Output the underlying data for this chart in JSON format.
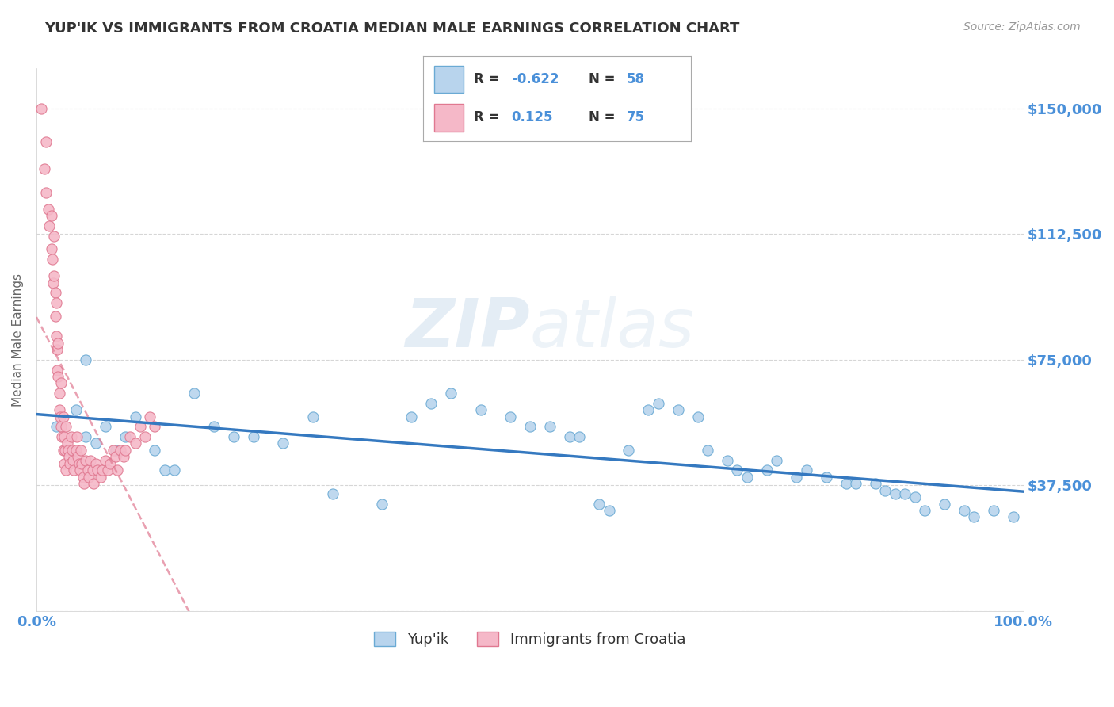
{
  "title": "YUP'IK VS IMMIGRANTS FROM CROATIA MEDIAN MALE EARNINGS CORRELATION CHART",
  "source": "Source: ZipAtlas.com",
  "ylabel": "Median Male Earnings",
  "xlim": [
    0,
    1.0
  ],
  "ylim": [
    0,
    162000
  ],
  "yticks": [
    0,
    37500,
    75000,
    112500,
    150000
  ],
  "ytick_labels": [
    "",
    "$37,500",
    "$75,000",
    "$112,500",
    "$150,000"
  ],
  "xtick_labels": [
    "0.0%",
    "100.0%"
  ],
  "background_color": "#ffffff",
  "grid_color": "#cccccc",
  "series1_name": "Yup'ik",
  "series1_color": "#b8d4ed",
  "series1_edge_color": "#6aaad4",
  "series1_line_color": "#3579c0",
  "series1_R": "-0.622",
  "series1_N": "58",
  "series2_name": "Immigrants from Croatia",
  "series2_color": "#f5b8c8",
  "series2_edge_color": "#e07890",
  "series2_line_color": "#e07890",
  "series2_R": "0.125",
  "series2_N": "75",
  "title_color": "#333333",
  "axis_label_color": "#4a90d9",
  "series1_x": [
    0.02,
    0.04,
    0.05,
    0.05,
    0.06,
    0.07,
    0.08,
    0.09,
    0.1,
    0.12,
    0.13,
    0.14,
    0.16,
    0.18,
    0.2,
    0.22,
    0.25,
    0.28,
    0.3,
    0.35,
    0.38,
    0.4,
    0.42,
    0.45,
    0.48,
    0.5,
    0.52,
    0.54,
    0.55,
    0.57,
    0.58,
    0.6,
    0.62,
    0.63,
    0.65,
    0.67,
    0.68,
    0.7,
    0.71,
    0.72,
    0.74,
    0.75,
    0.77,
    0.78,
    0.8,
    0.82,
    0.83,
    0.85,
    0.86,
    0.87,
    0.88,
    0.89,
    0.9,
    0.92,
    0.94,
    0.95,
    0.97,
    0.99
  ],
  "series1_y": [
    55000,
    60000,
    52000,
    75000,
    50000,
    55000,
    48000,
    52000,
    58000,
    48000,
    42000,
    42000,
    65000,
    55000,
    52000,
    52000,
    50000,
    58000,
    35000,
    32000,
    58000,
    62000,
    65000,
    60000,
    58000,
    55000,
    55000,
    52000,
    52000,
    32000,
    30000,
    48000,
    60000,
    62000,
    60000,
    58000,
    48000,
    45000,
    42000,
    40000,
    42000,
    45000,
    40000,
    42000,
    40000,
    38000,
    38000,
    38000,
    36000,
    35000,
    35000,
    34000,
    30000,
    32000,
    30000,
    28000,
    30000,
    28000
  ],
  "series2_x": [
    0.005,
    0.008,
    0.01,
    0.01,
    0.012,
    0.013,
    0.015,
    0.015,
    0.016,
    0.017,
    0.018,
    0.018,
    0.019,
    0.019,
    0.02,
    0.02,
    0.021,
    0.021,
    0.022,
    0.022,
    0.023,
    0.023,
    0.024,
    0.025,
    0.025,
    0.026,
    0.027,
    0.027,
    0.028,
    0.028,
    0.029,
    0.03,
    0.03,
    0.031,
    0.032,
    0.033,
    0.034,
    0.035,
    0.036,
    0.037,
    0.038,
    0.04,
    0.041,
    0.042,
    0.043,
    0.044,
    0.045,
    0.046,
    0.047,
    0.048,
    0.05,
    0.052,
    0.053,
    0.055,
    0.057,
    0.058,
    0.06,
    0.062,
    0.065,
    0.067,
    0.07,
    0.072,
    0.075,
    0.078,
    0.08,
    0.082,
    0.085,
    0.088,
    0.09,
    0.095,
    0.1,
    0.105,
    0.11,
    0.115,
    0.12
  ],
  "series2_y": [
    150000,
    132000,
    140000,
    125000,
    120000,
    115000,
    118000,
    108000,
    105000,
    98000,
    112000,
    100000,
    95000,
    88000,
    92000,
    82000,
    78000,
    72000,
    80000,
    70000,
    65000,
    60000,
    58000,
    68000,
    55000,
    52000,
    58000,
    48000,
    52000,
    44000,
    48000,
    55000,
    42000,
    50000,
    48000,
    46000,
    44000,
    52000,
    48000,
    45000,
    42000,
    48000,
    52000,
    46000,
    44000,
    42000,
    48000,
    44000,
    40000,
    38000,
    45000,
    42000,
    40000,
    45000,
    42000,
    38000,
    44000,
    42000,
    40000,
    42000,
    45000,
    42000,
    44000,
    48000,
    46000,
    42000,
    48000,
    46000,
    48000,
    52000,
    50000,
    55000,
    52000,
    58000,
    55000
  ]
}
